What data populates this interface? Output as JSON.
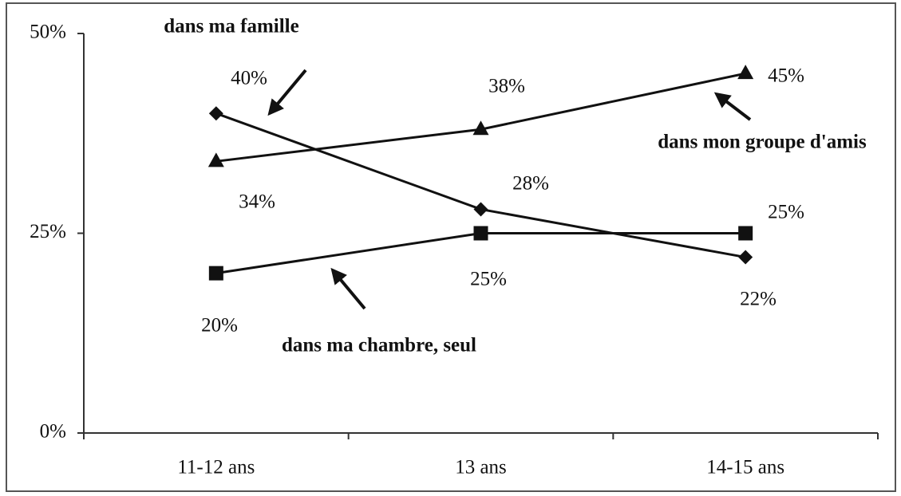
{
  "chart_data": {
    "type": "line",
    "categories": [
      "11-12 ans",
      "13 ans",
      "14-15 ans"
    ],
    "series": [
      {
        "name": "dans ma famille",
        "color": "#111111",
        "values": [
          40,
          28,
          22
        ],
        "value_labels": [
          "40%",
          "28%",
          "22%"
        ]
      },
      {
        "name": "dans mon groupe d'amis",
        "color": "#111111",
        "values": [
          34,
          38,
          45
        ],
        "value_labels": [
          "34%",
          "38%",
          "45%"
        ]
      },
      {
        "name": "dans ma chambre, seul",
        "color": "#111111",
        "values": [
          20,
          25,
          25
        ],
        "value_labels": [
          "20%",
          "25%",
          "25%"
        ]
      }
    ],
    "ylim": [
      0,
      50
    ],
    "yticks": [
      {
        "value": 0,
        "label": "0%"
      },
      {
        "value": 25,
        "label": "25%"
      },
      {
        "value": 50,
        "label": "50%"
      }
    ],
    "grid": false
  }
}
